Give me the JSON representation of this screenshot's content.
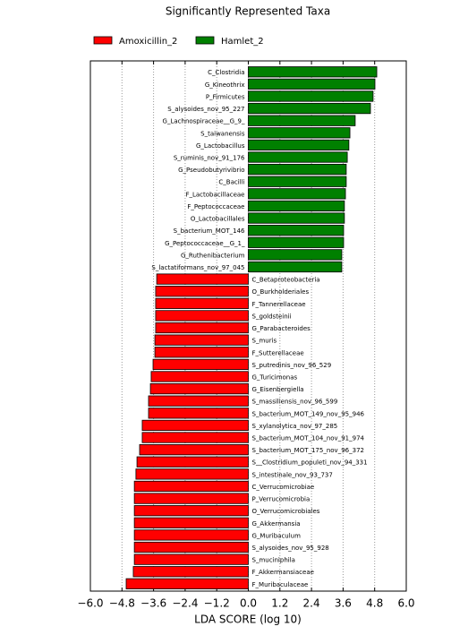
{
  "chart_data": {
    "type": "bar",
    "orientation": "horizontal",
    "title": "Significantly Represented Taxa",
    "xlabel": "LDA SCORE (log 10)",
    "categories": [
      "C_Clostridia",
      "G_Kineothrix",
      "P_Firmicutes",
      "S_alysoides_nov_95_227",
      "G_Lachnospiraceae__G_9_",
      "S_taiwanensis",
      "G_Lactobacillus",
      "S_ruminis_nov_91_176",
      "G_Pseudobutyrivibrio",
      "C_Bacilli",
      "F_Lactobacillaceae",
      "F_Peptococcaceae",
      "O_Lactobacillales",
      "S_bacterium_MOT_146",
      "G_Peptococcaceae__G_1_",
      "G_Ruthenibacterium",
      "S_lactatiformans_nov_97_045",
      "C_Betaproteobacteria",
      "O_Burkholderiales",
      "F_Tannerellaceae",
      "S_goldsteinii",
      "G_Parabacteroides",
      "S_muris",
      "F_Sutterellaceae",
      "S_putredinis_nov_96_529",
      "G_Turicimonas",
      "G_Eisenbergiella",
      "S_massiliensis_nov_96_599",
      "S_bacterium_MOT_149_nov_95_946",
      "S_xylanolytica_nov_97_285",
      "S_bacterium_MOT_104_nov_91_974",
      "S_bacterium_MOT_175_nov_96_372",
      "S__Clostridium_populeti_nov_94_331",
      "S_intestinale_nov_93_737",
      "C_Verrucomicrobiae",
      "P_Verrucomicrobia",
      "O_Verrucomicrobiales",
      "G_Akkermansia",
      "G_Muribaculum",
      "S_alysoides_nov_95_928",
      "S_muciniphila",
      "F_Akkermansiaceae",
      "F_Muribaculaceae"
    ],
    "series": [
      {
        "name": "Amoxicillin_2",
        "color": "#ff0000",
        "values": [
          null,
          null,
          null,
          null,
          null,
          null,
          null,
          null,
          null,
          null,
          null,
          null,
          null,
          null,
          null,
          null,
          null,
          -3.48,
          -3.52,
          -3.52,
          -3.52,
          -3.52,
          -3.55,
          -3.55,
          -3.62,
          -3.69,
          -3.72,
          -3.79,
          -3.79,
          -4.03,
          -4.03,
          -4.13,
          -4.23,
          -4.27,
          -4.33,
          -4.33,
          -4.33,
          -4.33,
          -4.33,
          -4.33,
          -4.33,
          -4.37,
          -4.64
        ]
      },
      {
        "name": "Hamlet_2",
        "color": "#008000",
        "values": [
          4.88,
          4.81,
          4.74,
          4.64,
          4.06,
          3.86,
          3.82,
          3.76,
          3.72,
          3.72,
          3.69,
          3.65,
          3.65,
          3.62,
          3.62,
          3.55,
          3.55,
          null,
          null,
          null,
          null,
          null,
          null,
          null,
          null,
          null,
          null,
          null,
          null,
          null,
          null,
          null,
          null,
          null,
          null,
          null,
          null,
          null,
          null,
          null,
          null,
          null,
          null
        ]
      }
    ],
    "xlim": [
      -6,
      6
    ],
    "xticks": [
      {
        "value": -6,
        "label": "−6.0"
      },
      {
        "value": -4.8,
        "label": "−4.8"
      },
      {
        "value": -3.6,
        "label": "−3.6"
      },
      {
        "value": -2.4,
        "label": "−2.4"
      },
      {
        "value": -1.2,
        "label": "−1.2"
      },
      {
        "value": 0,
        "label": "0.0"
      },
      {
        "value": 1.2,
        "label": "1.2"
      },
      {
        "value": 2.4,
        "label": "2.4"
      },
      {
        "value": 3.6,
        "label": "3.6"
      },
      {
        "value": 4.8,
        "label": "4.8"
      },
      {
        "value": 6,
        "label": "6.0"
      }
    ],
    "grid": true
  }
}
